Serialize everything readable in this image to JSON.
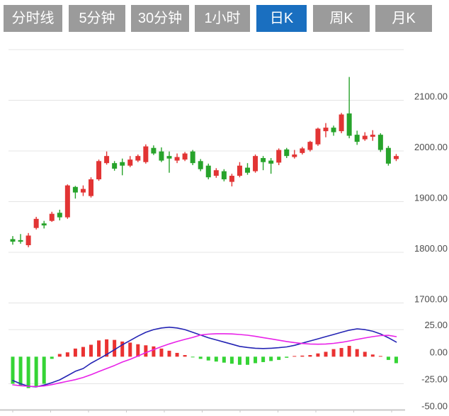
{
  "tabs": {
    "items": [
      {
        "label": "分时线",
        "active": false
      },
      {
        "label": "5分钟",
        "active": false
      },
      {
        "label": "30分钟",
        "active": false
      },
      {
        "label": "1小时",
        "active": false
      },
      {
        "label": "日K",
        "active": true
      },
      {
        "label": "周K",
        "active": false
      },
      {
        "label": "月K",
        "active": false
      }
    ]
  },
  "colors": {
    "tab_bg": "#9b9b9b",
    "tab_active_bg": "#1a6fc0",
    "tab_text": "#ffffff",
    "candle_up": "#e23434",
    "candle_down": "#27a32b",
    "hist_up": "#ea3232",
    "hist_down": "#35d435",
    "dif_line": "#2424b4",
    "dea_line": "#e822e8",
    "grid": "#e4e4e4",
    "axis_line": "#c9c9c9",
    "axis_label": "#4b4b4b"
  },
  "chart_data": [
    {
      "type": "candlestick",
      "panel": "price",
      "ylim": [
        1670,
        2200
      ],
      "grid": true,
      "legend_position": "none",
      "gridline_values": [
        2200,
        2100,
        2000,
        1900,
        1800,
        1700
      ],
      "y_ticks": [
        {
          "label": "2100.00",
          "value": 2100
        },
        {
          "label": "2000.00",
          "value": 2000
        },
        {
          "label": "1900.00",
          "value": 1900
        },
        {
          "label": "1800.00",
          "value": 1800
        },
        {
          "label": "1700.00",
          "value": 1700
        }
      ],
      "candles_ohlc": [
        [
          1826,
          1832,
          1815,
          1821
        ],
        [
          1824,
          1836,
          1817,
          1821
        ],
        [
          1814,
          1838,
          1810,
          1833
        ],
        [
          1848,
          1870,
          1845,
          1866
        ],
        [
          1857,
          1862,
          1847,
          1853
        ],
        [
          1862,
          1880,
          1860,
          1876
        ],
        [
          1878,
          1884,
          1863,
          1869
        ],
        [
          1869,
          1934,
          1866,
          1932
        ],
        [
          1929,
          1931,
          1906,
          1918
        ],
        [
          1918,
          1932,
          1911,
          1925
        ],
        [
          1911,
          1948,
          1908,
          1944
        ],
        [
          1944,
          1983,
          1941,
          1980
        ],
        [
          1976,
          1999,
          1973,
          1990
        ],
        [
          1976,
          1980,
          1961,
          1965
        ],
        [
          1978,
          1985,
          1952,
          1971
        ],
        [
          1971,
          1990,
          1968,
          1983
        ],
        [
          1981,
          1993,
          1978,
          1990
        ],
        [
          1978,
          2013,
          1975,
          2009
        ],
        [
          2006,
          2011,
          1992,
          1995
        ],
        [
          1999,
          2007,
          1978,
          1981
        ],
        [
          1990,
          1999,
          1957,
          1985
        ],
        [
          1981,
          1995,
          1976,
          1988
        ],
        [
          1983,
          1998,
          1980,
          1995
        ],
        [
          1999,
          2002,
          1972,
          1976
        ],
        [
          1980,
          1984,
          1960,
          1964
        ],
        [
          1971,
          1975,
          1944,
          1948
        ],
        [
          1951,
          1966,
          1947,
          1962
        ],
        [
          1960,
          1964,
          1940,
          1944
        ],
        [
          1939,
          1955,
          1930,
          1951
        ],
        [
          1951,
          1978,
          1948,
          1971
        ],
        [
          1967,
          1976,
          1953,
          1957
        ],
        [
          1960,
          1993,
          1957,
          1990
        ],
        [
          1986,
          1990,
          1962,
          1978
        ],
        [
          1981,
          1986,
          1955,
          1975
        ],
        [
          1977,
          2005,
          1972,
          2002
        ],
        [
          2003,
          2006,
          1986,
          1990
        ],
        [
          1988,
          2002,
          1985,
          1993
        ],
        [
          1996,
          2008,
          1993,
          2005
        ],
        [
          2002,
          2020,
          1999,
          2018
        ],
        [
          2013,
          2046,
          2010,
          2044
        ],
        [
          2039,
          2055,
          2027,
          2046
        ],
        [
          2046,
          2050,
          2030,
          2037
        ],
        [
          2039,
          2075,
          2035,
          2072
        ],
        [
          2074,
          2146,
          2025,
          2030
        ],
        [
          2032,
          2040,
          2012,
          2018
        ],
        [
          2023,
          2037,
          2020,
          2030
        ],
        [
          2028,
          2041,
          2020,
          2032
        ],
        [
          2032,
          2035,
          1998,
          2002
        ],
        [
          2006,
          2010,
          1971,
          1975
        ],
        [
          1984,
          1994,
          1980,
          1990
        ]
      ]
    },
    {
      "type": "macd",
      "panel": "indicator",
      "ylim": [
        -52,
        30
      ],
      "grid": true,
      "gridline_values": [
        25,
        -25
      ],
      "y_ticks": [
        {
          "label": "25.00",
          "value": 25
        },
        {
          "label": "0.00",
          "value": 0
        },
        {
          "label": "-25.00",
          "value": -25
        },
        {
          "label": "-50.00",
          "value": -50
        }
      ],
      "series": [
        {
          "name": "MACD-histogram",
          "values": [
            -25,
            -27,
            -29,
            -28,
            -25,
            -2,
            2.5,
            4,
            7.5,
            9,
            11,
            15,
            16,
            15.5,
            14,
            13,
            11.5,
            10.5,
            9.5,
            7.5,
            5.5,
            3.5,
            1.5,
            -0.5,
            -2,
            -3.5,
            -4.5,
            -5.5,
            -6.5,
            -7.5,
            -7.5,
            -6,
            -5,
            -4,
            -3,
            -1,
            0.5,
            1,
            1.5,
            3,
            4.5,
            7,
            8,
            10,
            7,
            4.5,
            2,
            0.5,
            -3,
            -6
          ]
        },
        {
          "name": "DIF",
          "values": [
            -22,
            -25,
            -27.3,
            -27.9,
            -26.2,
            -24,
            -21.4,
            -17.5,
            -13.5,
            -10.9,
            -6,
            -2,
            2,
            6.5,
            11,
            15,
            19,
            22.5,
            25,
            26.5,
            27.2,
            26.5,
            25,
            22.5,
            20,
            17.5,
            15.5,
            13.5,
            11.5,
            9.5,
            8.5,
            7.8,
            7.5,
            7.8,
            8.3,
            9,
            10.5,
            12.5,
            14.5,
            16.5,
            18.5,
            20.5,
            22.5,
            24.5,
            25.7,
            25,
            23.5,
            21,
            17.5,
            13.5
          ]
        },
        {
          "name": "DEA",
          "values": [
            -26,
            -26.8,
            -27.3,
            -27.6,
            -27,
            -25.8,
            -24.2,
            -22.7,
            -21.2,
            -19.2,
            -16.6,
            -13.7,
            -10.9,
            -8.1,
            -5,
            -2.4,
            0.6,
            3.7,
            6.5,
            9.3,
            11.8,
            14,
            16,
            17.8,
            20,
            20.8,
            21.2,
            21.2,
            21,
            20.5,
            19.8,
            18.8,
            17.6,
            16.4,
            15.2,
            14,
            13,
            12.2,
            11.7,
            11.5,
            11.7,
            12.3,
            13.2,
            14.5,
            16,
            17.3,
            18.5,
            19.5,
            19.7,
            18.5
          ]
        }
      ]
    }
  ]
}
